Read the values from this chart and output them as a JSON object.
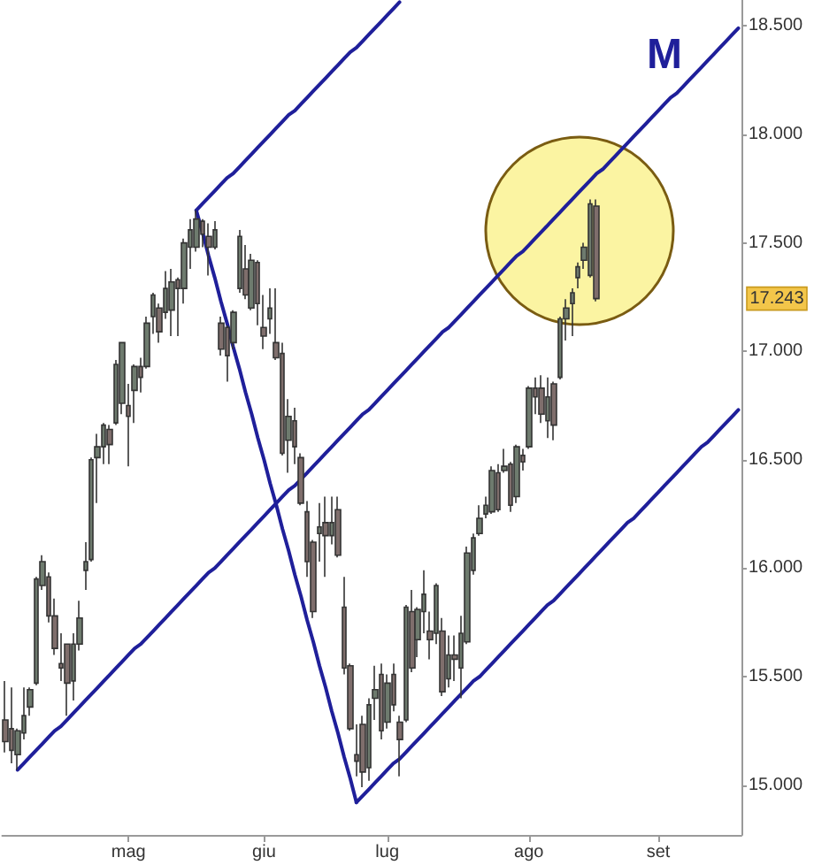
{
  "chart_data": {
    "type": "candlestick",
    "categories": [
      null,
      null,
      null,
      null,
      null,
      null,
      null,
      null,
      null,
      null,
      null,
      null,
      null,
      null,
      null,
      null,
      null,
      null,
      null,
      null,
      "mag",
      null,
      null,
      null,
      null,
      null,
      null,
      null,
      null,
      null,
      null,
      null,
      null,
      null,
      null,
      null,
      null,
      null,
      null,
      null,
      null,
      null,
      "giu",
      null,
      null,
      null,
      null,
      null,
      null,
      null,
      null,
      null,
      null,
      null,
      null,
      null,
      null,
      null,
      null,
      null,
      null,
      null,
      "lug",
      null,
      null,
      null,
      null,
      null,
      null,
      null,
      null,
      null,
      null,
      null,
      null,
      null,
      null,
      null,
      null,
      null,
      null,
      null,
      null,
      null,
      null,
      "ago",
      null,
      null,
      null,
      null,
      null,
      null,
      null,
      null,
      null,
      null,
      null,
      null,
      null,
      null,
      null,
      null,
      null,
      null,
      null,
      null,
      "set",
      null,
      null,
      null,
      null,
      null,
      null,
      null,
      null,
      null,
      null,
      null,
      null,
      null
    ],
    "ohlc": [
      [
        15300,
        15480,
        15150,
        15200
      ],
      [
        15260,
        15450,
        15100,
        15160
      ],
      [
        15140,
        15260,
        15070,
        15250
      ],
      [
        15240,
        15450,
        15210,
        15320
      ],
      [
        15360,
        15450,
        15320,
        15440
      ],
      [
        15470,
        15960,
        15460,
        15950
      ],
      [
        15920,
        16060,
        15900,
        16030
      ],
      [
        15960,
        15980,
        15750,
        15780
      ],
      [
        15780,
        15860,
        15600,
        15630
      ],
      [
        15560,
        15700,
        15480,
        15540
      ],
      [
        15650,
        15650,
        15320,
        15470
      ],
      [
        15480,
        15700,
        15390,
        15650
      ],
      [
        15650,
        15850,
        15620,
        15770
      ],
      [
        15990,
        16120,
        15900,
        16030
      ],
      [
        16040,
        16510,
        16030,
        16500
      ],
      [
        16510,
        16620,
        16300,
        16560
      ],
      [
        16560,
        16670,
        16480,
        16660
      ],
      [
        16640,
        16660,
        16480,
        16570
      ],
      [
        16670,
        16960,
        16660,
        16940
      ],
      [
        16760,
        17040,
        16710,
        17040
      ],
      [
        16750,
        16850,
        16470,
        16700
      ],
      [
        16820,
        16940,
        16670,
        16930
      ],
      [
        16930,
        16970,
        16810,
        16880
      ],
      [
        16930,
        17160,
        16920,
        17130
      ],
      [
        17160,
        17270,
        17080,
        17260
      ],
      [
        17200,
        17220,
        17040,
        17090
      ],
      [
        17180,
        17370,
        17150,
        17290
      ],
      [
        17190,
        17380,
        17070,
        17320
      ],
      [
        17330,
        17340,
        17070,
        17290
      ],
      [
        17290,
        17520,
        17220,
        17500
      ],
      [
        17480,
        17610,
        17380,
        17560
      ],
      [
        17480,
        17650,
        17460,
        17610
      ],
      [
        17600,
        17610,
        17480,
        17540
      ],
      [
        17530,
        17590,
        17350,
        17480
      ],
      [
        17480,
        17600,
        17470,
        17560
      ],
      [
        17130,
        17160,
        16980,
        17010
      ],
      [
        17110,
        17120,
        16860,
        16980
      ],
      [
        17040,
        17190,
        17010,
        17180
      ],
      [
        17290,
        17560,
        17270,
        17530
      ],
      [
        17380,
        17490,
        17240,
        17260
      ],
      [
        17200,
        17450,
        17190,
        17420
      ],
      [
        17410,
        17420,
        17120,
        17220
      ],
      [
        17110,
        17260,
        17010,
        17070
      ],
      [
        17150,
        17290,
        17080,
        17200
      ],
      [
        17040,
        17290,
        16960,
        16970
      ],
      [
        16990,
        17040,
        16520,
        16530
      ],
      [
        16590,
        16780,
        16440,
        16700
      ],
      [
        16680,
        16740,
        16480,
        16560
      ],
      [
        16510,
        16530,
        16290,
        16300
      ],
      [
        16260,
        16310,
        15960,
        16030
      ],
      [
        16120,
        16130,
        15770,
        15800
      ],
      [
        16160,
        16300,
        16030,
        16190
      ],
      [
        16210,
        16330,
        15960,
        16150
      ],
      [
        16150,
        16330,
        16110,
        16210
      ],
      [
        16270,
        16330,
        16050,
        16060
      ],
      [
        15820,
        15960,
        15510,
        15540
      ],
      [
        15550,
        15560,
        15250,
        15260
      ],
      [
        15140,
        15280,
        15040,
        15110
      ],
      [
        15280,
        15320,
        14990,
        15060
      ],
      [
        15080,
        15400,
        15020,
        15370
      ],
      [
        15400,
        15550,
        15300,
        15440
      ],
      [
        15510,
        15560,
        15210,
        15250
      ],
      [
        15290,
        15510,
        15260,
        15470
      ],
      [
        15510,
        15560,
        15340,
        15370
      ],
      [
        15290,
        15320,
        15040,
        15210
      ],
      [
        15300,
        15830,
        15290,
        15820
      ],
      [
        15800,
        15900,
        15520,
        15540
      ],
      [
        15670,
        15820,
        15590,
        15810
      ],
      [
        15800,
        15990,
        15700,
        15880
      ],
      [
        15710,
        15800,
        15580,
        15670
      ],
      [
        15700,
        15930,
        15650,
        15920
      ],
      [
        15710,
        15770,
        15410,
        15430
      ],
      [
        15490,
        15690,
        15450,
        15600
      ],
      [
        15600,
        15690,
        15480,
        15580
      ],
      [
        15540,
        15780,
        15400,
        15700
      ],
      [
        15660,
        16100,
        15650,
        16070
      ],
      [
        15990,
        16160,
        15970,
        16140
      ],
      [
        16160,
        16290,
        16150,
        16230
      ],
      [
        16250,
        16330,
        16230,
        16290
      ],
      [
        16260,
        16470,
        16250,
        16450
      ],
      [
        16440,
        16480,
        16260,
        16270
      ],
      [
        16450,
        16550,
        16440,
        16470
      ],
      [
        16480,
        16490,
        16260,
        16290
      ],
      [
        16330,
        16570,
        16300,
        16560
      ],
      [
        16520,
        16550,
        16450,
        16490
      ],
      [
        16560,
        16840,
        16550,
        16830
      ],
      [
        16830,
        16880,
        16710,
        16790
      ],
      [
        16830,
        16890,
        16670,
        16710
      ],
      [
        16680,
        16880,
        16600,
        16790
      ],
      [
        16850,
        16860,
        16590,
        16660
      ],
      [
        16880,
        17160,
        16870,
        17150
      ],
      [
        17150,
        17240,
        17050,
        17200
      ],
      [
        17220,
        17290,
        17070,
        17270
      ],
      [
        17340,
        17410,
        17290,
        17390
      ],
      [
        17420,
        17500,
        17380,
        17480
      ],
      [
        17350,
        17700,
        17340,
        17680
      ],
      [
        17670,
        17700,
        17230,
        17243
      ],
      null,
      null,
      null,
      null,
      null,
      null,
      null,
      null,
      null,
      null,
      null,
      null,
      null,
      null,
      null,
      null,
      null,
      null,
      null,
      null,
      null,
      null,
      null
    ],
    "colors": [
      "#7f6e6c",
      "#7f6e6c",
      "#6e7b6e",
      "#6e7b6e",
      "#6e7b6e",
      "#6e7b6e",
      "#6e7b6e",
      "#7f6e6c",
      "#7f6e6c",
      "#7f6e6c",
      "#7f6e6c",
      "#6e7b6e",
      "#6e7b6e",
      "#6e7b6e",
      "#6e7b6e",
      "#6e7b6e",
      "#6e7b6e",
      "#7f6e6c",
      "#6e7b6e",
      "#6e7b6e",
      "#7f6e6c",
      "#6e7b6e",
      "#7f6e6c",
      "#6e7b6e",
      "#6e7b6e",
      "#7f6e6c",
      "#6e7b6e",
      "#6e7b6e",
      "#7f6e6c",
      "#6e7b6e",
      "#6e7b6e",
      "#6e7b6e",
      "#7f6e6c",
      "#7f6e6c",
      "#6e7b6e",
      "#7f6e6c",
      "#7f6e6c",
      "#6e7b6e",
      "#6e7b6e",
      "#7f6e6c",
      "#6e7b6e",
      "#7f6e6c",
      "#7f6e6c",
      "#6e7b6e",
      "#7f6e6c",
      "#7f6e6c",
      "#6e7b6e",
      "#7f6e6c",
      "#7f6e6c",
      "#7f6e6c",
      "#7f6e6c",
      "#6e7b6e",
      "#7f6e6c",
      "#6e7b6e",
      "#7f6e6c",
      "#7f6e6c",
      "#7f6e6c",
      "#7f6e6c",
      "#7f6e6c",
      "#6e7b6e",
      "#6e7b6e",
      "#7f6e6c",
      "#6e7b6e",
      "#7f6e6c",
      "#7f6e6c",
      "#6e7b6e",
      "#7f6e6c",
      "#6e7b6e",
      "#6e7b6e",
      "#7f6e6c",
      "#6e7b6e",
      "#7f6e6c",
      "#6e7b6e",
      "#7f6e6c",
      "#6e7b6e",
      "#6e7b6e",
      "#6e7b6e",
      "#6e7b6e",
      "#6e7b6e",
      "#6e7b6e",
      "#7f6e6c",
      "#6e7b6e",
      "#7f6e6c",
      "#6e7b6e",
      "#7f6e6c",
      "#6e7b6e",
      "#7f6e6c",
      "#7f6e6c",
      "#6e7b6e",
      "#7f6e6c",
      "#6e7b6e",
      "#6e7b6e",
      "#6e7b6e",
      "#6e7b6e",
      "#6e7b6e",
      "#6e7b6e",
      "#7f6e6c",
      null,
      null,
      null,
      null,
      null,
      null,
      null,
      null,
      null,
      null,
      null,
      null,
      null,
      null,
      null,
      null,
      null,
      null,
      null,
      null,
      null,
      null,
      null
    ],
    "series": [
      {
        "type": "line",
        "color": "#1f1f9a",
        "values": [
          null,
          null,
          null,
          null,
          null,
          null,
          null,
          null,
          null,
          null,
          null,
          null,
          null,
          null,
          null,
          null,
          null,
          null,
          null,
          null,
          null,
          null,
          null,
          null,
          null,
          null,
          null,
          null,
          null,
          null,
          null,
          17650,
          17550,
          17440,
          17340,
          17230,
          17130,
          17020,
          16920,
          16810,
          16710,
          16600,
          16500,
          16390,
          16290,
          16180,
          16080,
          15970,
          15870,
          15760,
          15660,
          15550,
          15450,
          15340,
          15240,
          15130,
          15030,
          14920,
          null,
          null,
          null,
          null,
          null,
          null,
          null,
          null,
          null,
          null,
          null,
          null,
          null,
          null,
          null,
          null,
          null,
          null,
          null,
          null,
          null,
          null,
          null,
          null,
          null,
          null,
          null,
          null,
          null,
          null,
          null,
          null,
          null,
          null,
          null,
          null,
          null,
          null,
          null,
          null,
          null,
          null,
          null,
          null,
          null,
          null,
          null,
          null,
          null,
          null,
          null,
          null,
          null,
          null,
          null,
          null,
          null,
          null,
          null,
          null,
          null,
          null
        ]
      },
      {
        "type": "line",
        "name": "M",
        "color": "#1f1f9a",
        "values": [
          null,
          null,
          15070,
          15100,
          15130,
          15160,
          15190,
          15220,
          15250,
          15270,
          15300,
          15330,
          15360,
          15390,
          15420,
          15450,
          15480,
          15510,
          15540,
          15570,
          15600,
          15630,
          15650,
          15680,
          15710,
          15740,
          15770,
          15800,
          15830,
          15860,
          15890,
          15920,
          15950,
          15980,
          16000,
          16030,
          16060,
          16090,
          16120,
          16150,
          16180,
          16210,
          16240,
          16270,
          16300,
          16330,
          16360,
          16380,
          16410,
          16440,
          16470,
          16500,
          16530,
          16560,
          16590,
          16620,
          16650,
          16680,
          16710,
          16730,
          16760,
          16790,
          16820,
          16850,
          16880,
          16910,
          16940,
          16970,
          17000,
          17030,
          17060,
          17090,
          17110,
          17140,
          17170,
          17200,
          17230,
          17260,
          17290,
          17320,
          17350,
          17380,
          17410,
          17440,
          17460,
          17490,
          17520,
          17550,
          17580,
          17610,
          17640,
          17670,
          17700,
          17730,
          17760,
          17790,
          17820,
          17840,
          17870,
          17900,
          17930,
          17960,
          17990,
          18020,
          18050,
          18080,
          18110,
          18140,
          18170,
          18190,
          18220,
          18250,
          18280,
          18310,
          18340,
          18370,
          18400,
          18430,
          18460,
          18490
        ]
      },
      {
        "type": "line",
        "color": "#1f1f9a",
        "values": [
          null,
          null,
          null,
          null,
          null,
          null,
          null,
          null,
          null,
          null,
          null,
          null,
          null,
          null,
          null,
          null,
          null,
          null,
          null,
          null,
          null,
          null,
          null,
          null,
          null,
          null,
          null,
          null,
          null,
          null,
          null,
          17650,
          17680,
          17710,
          17740,
          17770,
          17800,
          17820,
          17850,
          17880,
          17910,
          17940,
          17970,
          18000,
          18030,
          18060,
          18090,
          18110,
          18140,
          18170,
          18200,
          18230,
          18260,
          18290,
          18320,
          18350,
          18380,
          18400,
          18430,
          18460,
          18490,
          18520,
          18550,
          18580,
          18610,
          null,
          null,
          null,
          null,
          null,
          null,
          null,
          null,
          null,
          null,
          null,
          null,
          null,
          null,
          null,
          null,
          null,
          null,
          null,
          null,
          null,
          null,
          null,
          null,
          null,
          null,
          null,
          null,
          null,
          null,
          null,
          null,
          null,
          null,
          null,
          null,
          null,
          null,
          null,
          null,
          null,
          null,
          null,
          null,
          null,
          null,
          null,
          null,
          null,
          null,
          null,
          null,
          null,
          null,
          null
        ]
      },
      {
        "type": "line",
        "color": "#1f1f9a",
        "values": [
          null,
          null,
          null,
          null,
          null,
          null,
          null,
          null,
          null,
          null,
          null,
          null,
          null,
          null,
          null,
          null,
          null,
          null,
          null,
          null,
          null,
          null,
          null,
          null,
          null,
          null,
          null,
          null,
          null,
          null,
          null,
          null,
          null,
          null,
          null,
          null,
          null,
          null,
          null,
          null,
          null,
          null,
          null,
          null,
          null,
          null,
          null,
          null,
          null,
          null,
          null,
          null,
          null,
          null,
          null,
          null,
          null,
          14920,
          14950,
          14980,
          15010,
          15040,
          15070,
          15100,
          15120,
          15150,
          15180,
          15210,
          15240,
          15270,
          15300,
          15330,
          15360,
          15390,
          15420,
          15450,
          15480,
          15500,
          15530,
          15560,
          15590,
          15620,
          15650,
          15680,
          15710,
          15740,
          15770,
          15800,
          15830,
          15850,
          15880,
          15910,
          15940,
          15970,
          16000,
          16030,
          16060,
          16090,
          16120,
          16150,
          16180,
          16210,
          16230,
          16260,
          16290,
          16320,
          16350,
          16380,
          16410,
          16440,
          16470,
          16500,
          16530,
          16560,
          16580,
          16610,
          16640,
          16670,
          16700,
          16730
        ]
      }
    ],
    "ylim": [
      14770,
      18620
    ],
    "yticks": [
      {
        "value": 15000,
        "label": "15.000"
      },
      {
        "value": 15500,
        "label": "15.500"
      },
      {
        "value": 16000,
        "label": "16.000"
      },
      {
        "value": 16500,
        "label": "16.500"
      },
      {
        "value": 17000,
        "label": "17.000"
      },
      {
        "value": 17500,
        "label": "17.500"
      },
      {
        "value": 18000,
        "label": "18.000"
      },
      {
        "value": 18500,
        "label": "18.500"
      }
    ],
    "annotations": [
      {
        "text": "17.243",
        "y": 17243
      }
    ]
  }
}
